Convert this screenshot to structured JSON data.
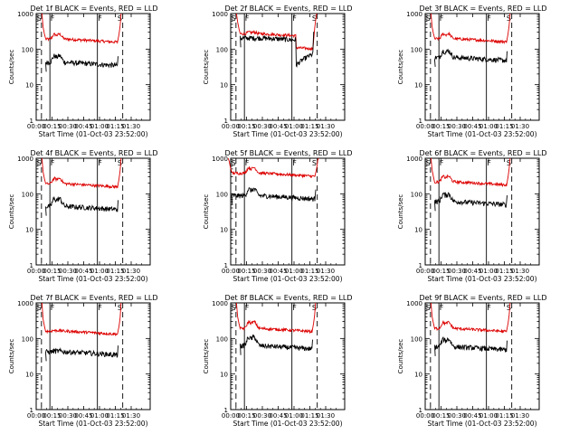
{
  "chart_data": {
    "type": "line",
    "panel_titles": [
      "Det 1f BLACK = Events, RED = LLD",
      "Det 2f BLACK = Events, RED = LLD",
      "Det 3f BLACK = Events, RED = LLD",
      "Det 4f BLACK = Events, RED = LLD",
      "Det 5f BLACK = Events, RED = LLD",
      "Det 6f BLACK = Events, RED = LLD",
      "Det 7f BLACK = Events, RED = LLD",
      "Det 8f BLACK = Events, RED = LLD",
      "Det 9f BLACK = Events, RED = LLD"
    ],
    "xlabel": "Start Time (01-Oct-03 23:52:00)",
    "ylabel": "Counts/sec",
    "y_scale": "log",
    "ylim": [
      1,
      1000
    ],
    "y_ticks": [
      "1",
      "10",
      "100",
      "1000"
    ],
    "x_ticks": [
      "00:00",
      "00:15",
      "00:30",
      "00:45",
      "01:00",
      "01:15",
      "01:30"
    ],
    "xlim_minutes_after_start": [
      0,
      108
    ],
    "series_colors": {
      "events": "#000000",
      "lld": "#dd0000"
    },
    "flag_lines": {
      "dashed_minutes": [
        5,
        82
      ],
      "solid_minutes": [
        13,
        58
      ]
    },
    "flag_labels": [
      {
        "text": "S",
        "minute": 0.5
      },
      {
        "text": "F",
        "minute": 13.5
      },
      {
        "text": "F",
        "minute": 58.5
      },
      {
        "text": "S",
        "minute": 77
      }
    ],
    "panels": [
      {
        "events_level": 42,
        "lld_level": 190,
        "events_bump": 1.5,
        "lld_bump": 1.35,
        "data_minutes": [
          9,
          77
        ],
        "step": null
      },
      {
        "events_level": 205,
        "lld_level": 270,
        "events_bump": 1.0,
        "lld_bump": 1.1,
        "data_minutes": [
          9,
          78
        ],
        "step": {
          "minute": 62,
          "events_level": 40,
          "lld_level": 125
        }
      },
      {
        "events_level": 58,
        "lld_level": 195,
        "events_bump": 1.5,
        "lld_bump": 1.35,
        "data_minutes": [
          9,
          77
        ],
        "step": null
      },
      {
        "events_level": 44,
        "lld_level": 190,
        "events_bump": 1.6,
        "lld_bump": 1.4,
        "data_minutes": [
          9,
          77
        ],
        "step": null
      },
      {
        "events_level": 88,
        "lld_level": 380,
        "events_bump": 1.5,
        "lld_bump": 1.4,
        "data_minutes": [
          1,
          80
        ],
        "step": null
      },
      {
        "events_level": 60,
        "lld_level": 215,
        "events_bump": 1.6,
        "lld_bump": 1.4,
        "data_minutes": [
          9,
          77
        ],
        "step": null
      },
      {
        "events_level": 42,
        "lld_level": 160,
        "events_bump": 1.05,
        "lld_bump": 1.05,
        "data_minutes": [
          9,
          77
        ],
        "step": null
      },
      {
        "events_level": 62,
        "lld_level": 190,
        "events_bump": 1.7,
        "lld_bump": 1.5,
        "data_minutes": [
          9,
          77
        ],
        "step": null
      },
      {
        "events_level": 58,
        "lld_level": 190,
        "events_bump": 1.6,
        "lld_bump": 1.45,
        "data_minutes": [
          9,
          77
        ],
        "step": null
      }
    ]
  }
}
